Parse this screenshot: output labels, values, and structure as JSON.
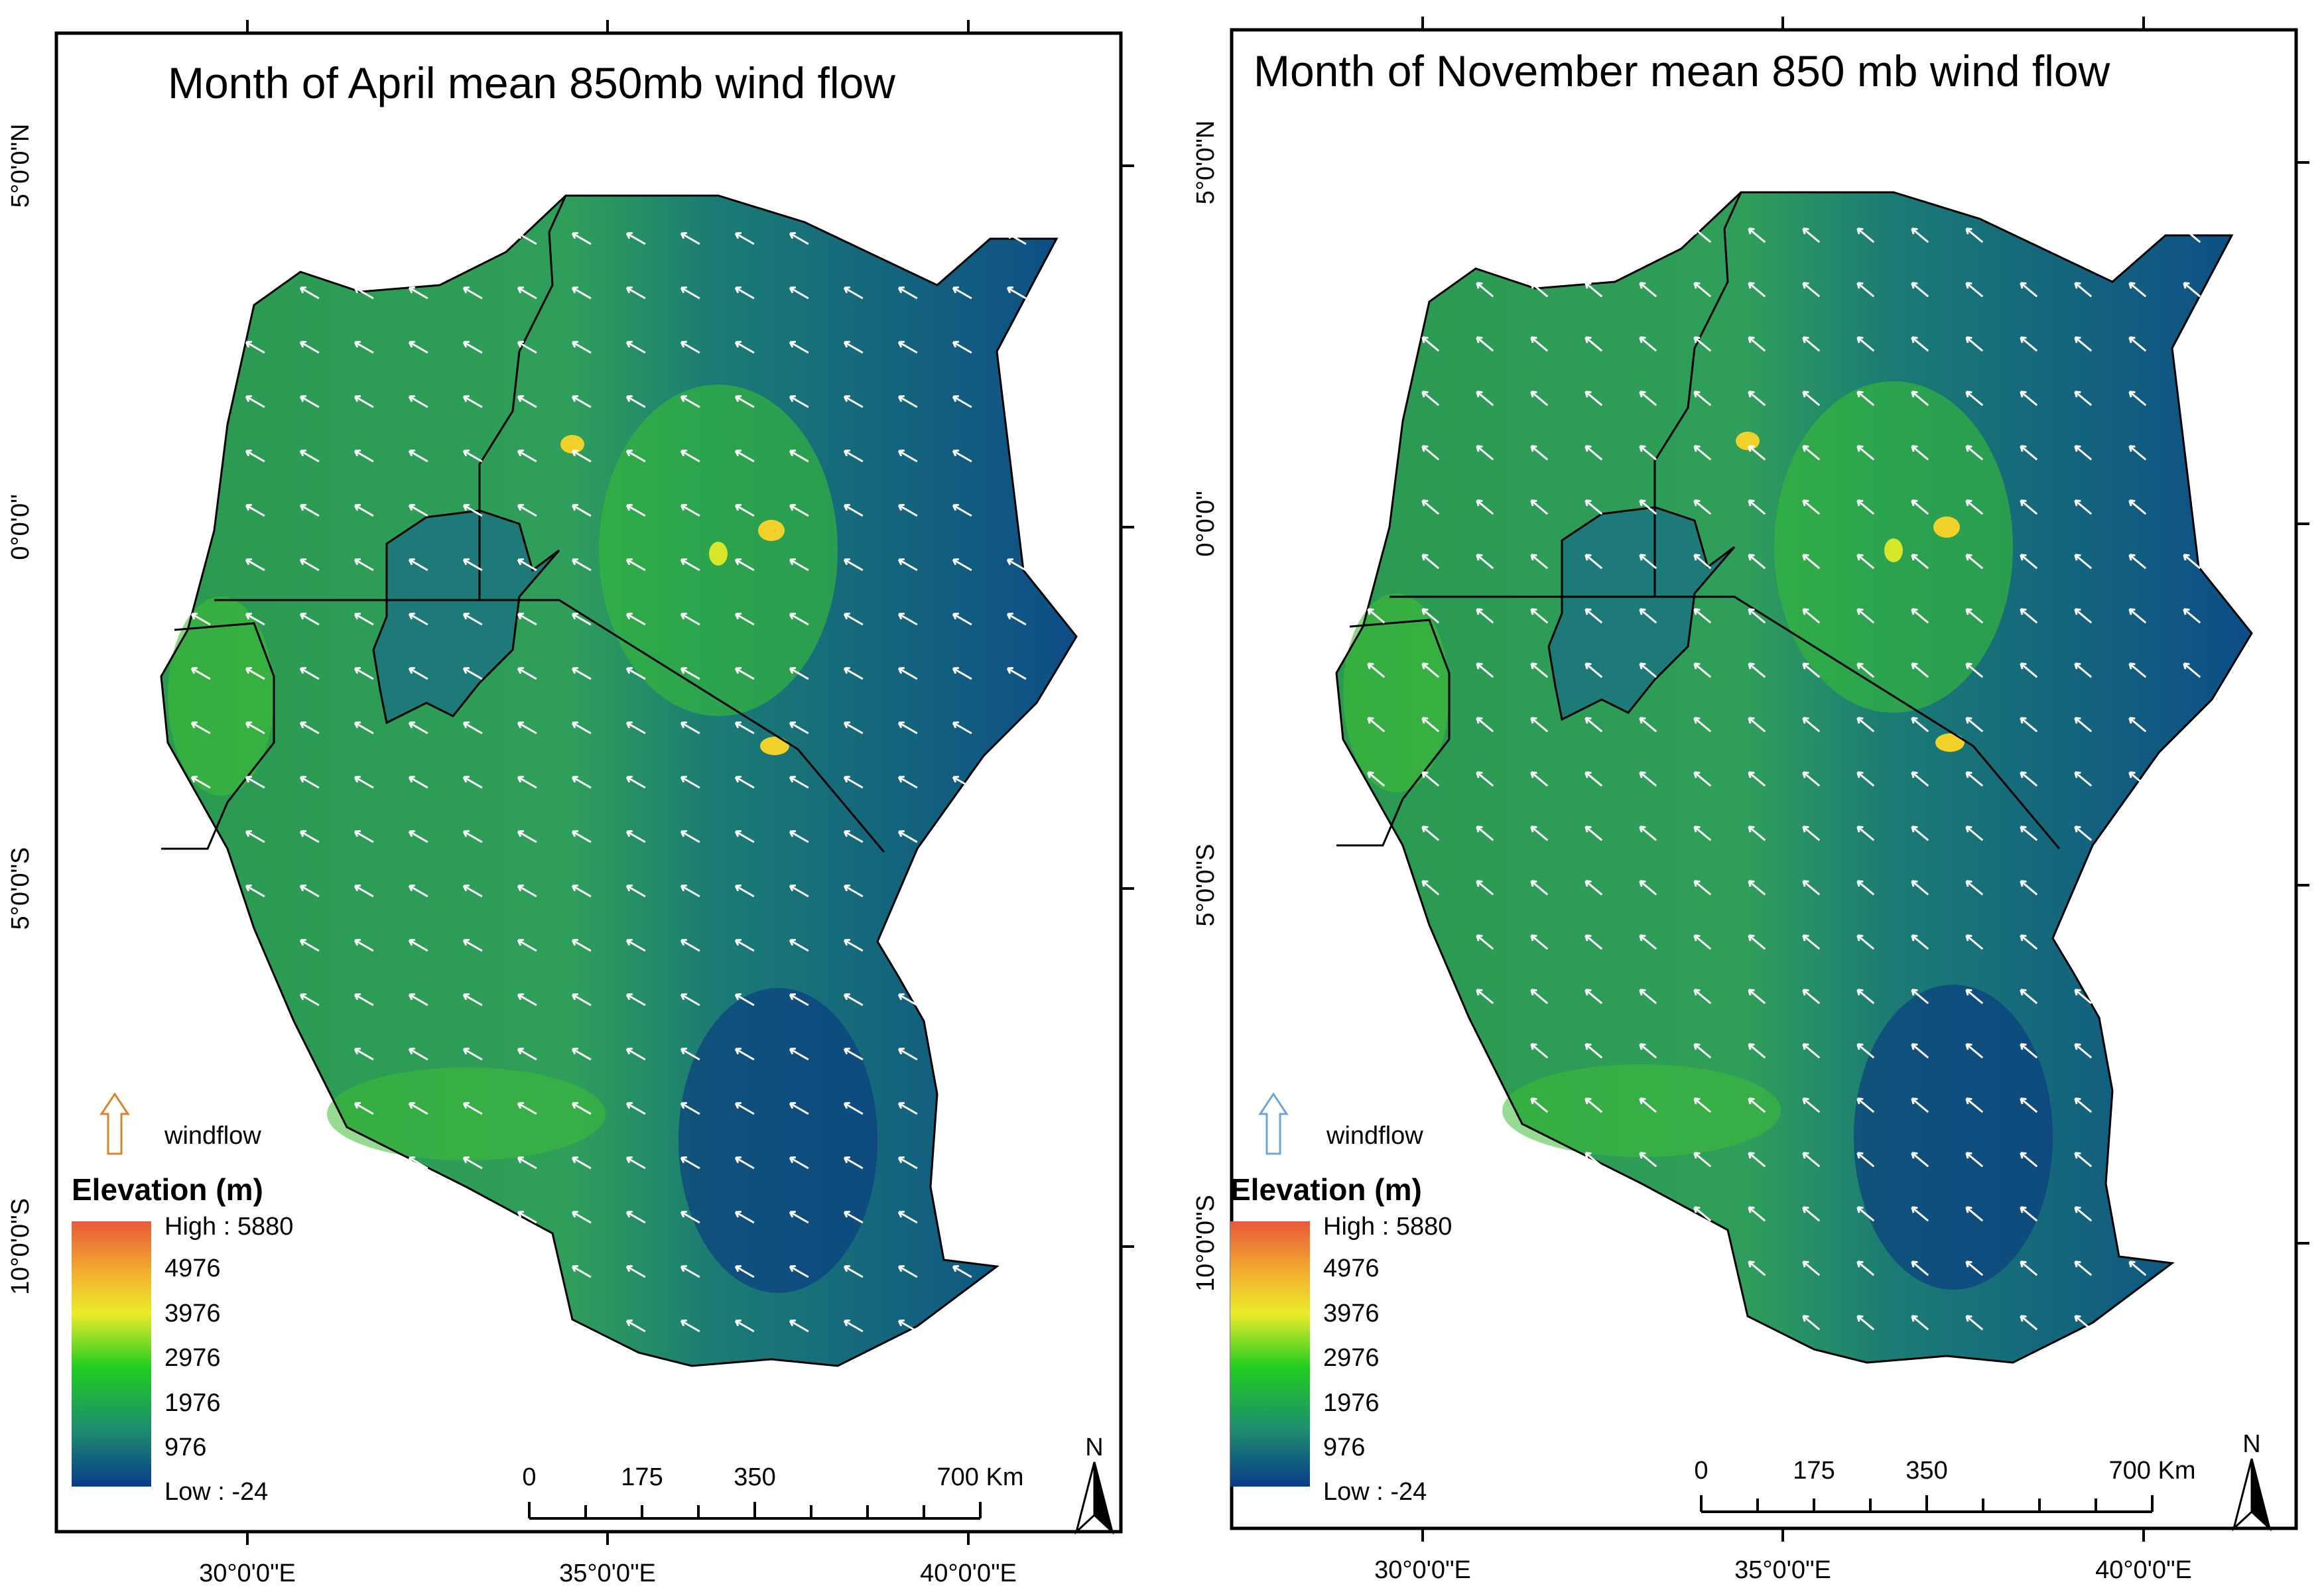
{
  "panels": [
    {
      "id": "april",
      "title": "Month of April  mean  850mb wind flow",
      "month": "April",
      "wind_arrow_color": "#d8842c",
      "wind_direction_deg": 300
    },
    {
      "id": "november",
      "title": "Month of November mean  850 mb wind flow",
      "month": "November",
      "wind_arrow_color": "#6fa6d8",
      "wind_direction_deg": 310
    }
  ],
  "axes": {
    "longitude_labels": [
      "30°0'0\"E",
      "35°0'0\"E",
      "40°0'0\"E"
    ],
    "latitude_labels": [
      "5°0'0\"N",
      "0°0'0\"",
      "5°0'0\"S",
      "10°0'0\"S"
    ]
  },
  "legend": {
    "wind_label": "windflow",
    "elevation_title": "Elevation (m)",
    "high_label": "High : 5880",
    "low_label": "Low : -24",
    "values": [
      "4976",
      "3976",
      "2976",
      "1976",
      "976"
    ],
    "colors": [
      "#e8583a",
      "#f2b230",
      "#e9ec2a",
      "#22cc20",
      "#1d8f6e",
      "#0b3a8a"
    ]
  },
  "scale_bar": {
    "labels": [
      "0",
      "175",
      "350",
      "700 Km"
    ]
  },
  "north_label": "N"
}
